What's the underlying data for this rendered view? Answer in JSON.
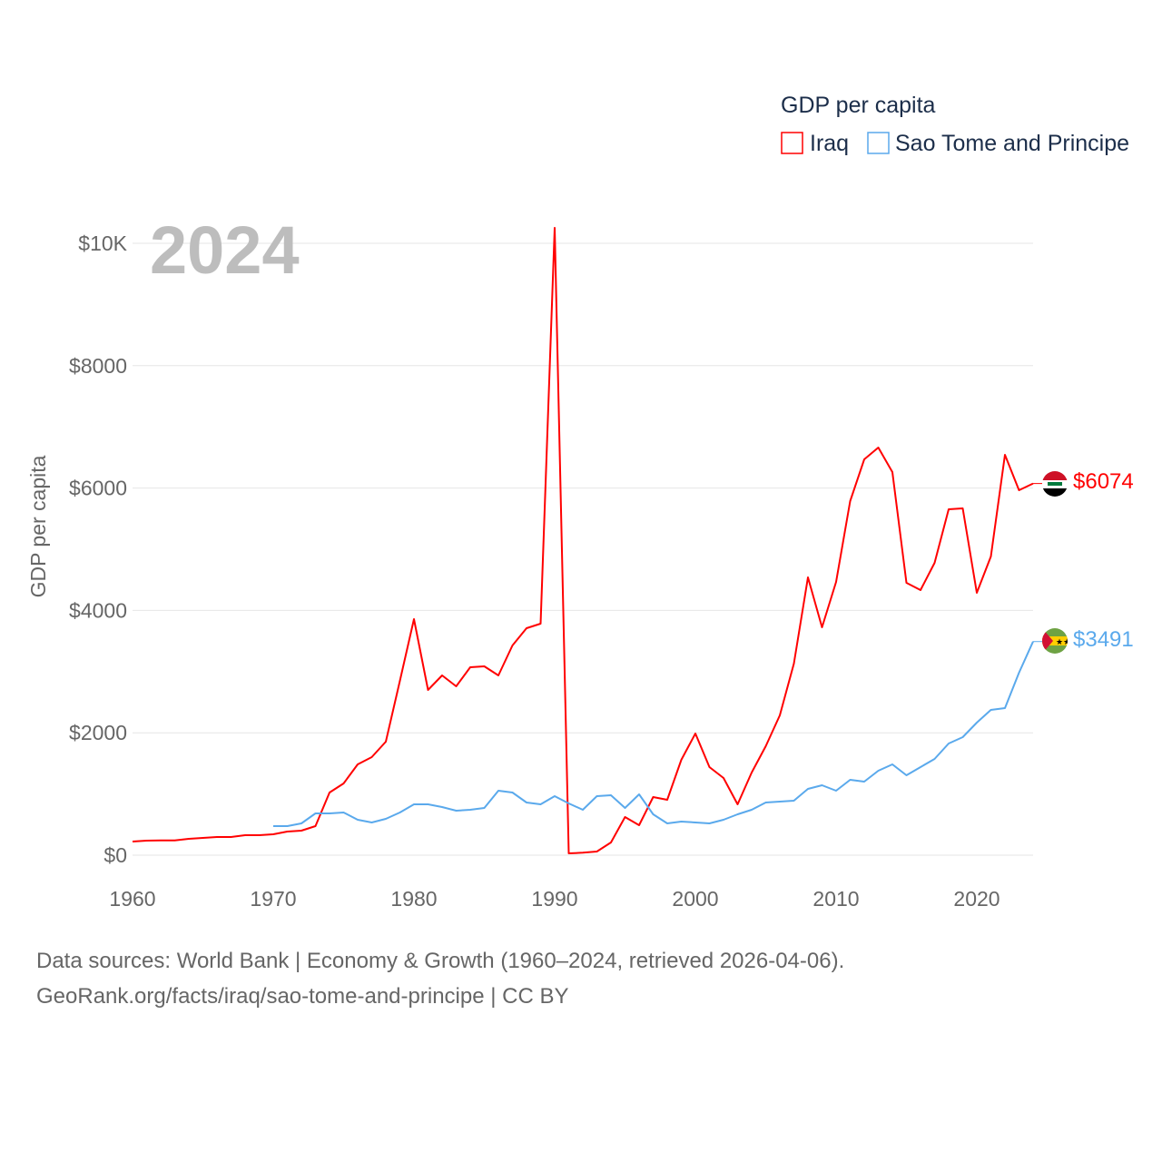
{
  "chart_data": {
    "type": "line",
    "title": "GDP per capita",
    "ylabel": "GDP per capita",
    "xlabel": "",
    "year_label": "2024",
    "xlim": [
      1960,
      2024
    ],
    "ylim": [
      0,
      10000
    ],
    "x_ticks": [
      1960,
      1970,
      1980,
      1990,
      2000,
      2010,
      2020
    ],
    "y_ticks": [
      {
        "v": 0,
        "label": "$0"
      },
      {
        "v": 2000,
        "label": "$2000"
      },
      {
        "v": 4000,
        "label": "$4000"
      },
      {
        "v": 6000,
        "label": "$6000"
      },
      {
        "v": 8000,
        "label": "$8000"
      },
      {
        "v": 10000,
        "label": "$10K"
      }
    ],
    "grid": true,
    "legend_position": "top-right",
    "series": [
      {
        "name": "Iraq",
        "color": "#ff0000",
        "end_label": "$6074",
        "start_year": 1960,
        "values": [
          223,
          237,
          240,
          240,
          267,
          282,
          297,
          297,
          326,
          326,
          341,
          386,
          400,
          475,
          1024,
          1172,
          1484,
          1602,
          1855,
          2849,
          3858,
          2700,
          2938,
          2760,
          3071,
          3086,
          2938,
          3427,
          3709,
          3783,
          10252,
          30,
          40,
          60,
          208,
          623,
          490,
          950,
          905,
          1558,
          1988,
          1439,
          1261,
          831,
          1350,
          1780,
          2285,
          3130,
          4540,
          3724,
          4466,
          5786,
          6469,
          6662,
          6261,
          4451,
          4332,
          4777,
          5653,
          5668,
          4288,
          4881,
          6543,
          5964,
          6074
        ]
      },
      {
        "name": "Sao Tome and Principe",
        "color": "#5aa9ec",
        "end_label": "$3491",
        "start_year": 1970,
        "values": [
          475,
          475,
          520,
          682,
          682,
          697,
          579,
          534,
          593,
          697,
          831,
          831,
          786,
          727,
          742,
          772,
          1053,
          1024,
          860,
          831,
          964,
          846,
          742,
          964,
          979,
          772,
          994,
          668,
          519,
          549,
          534,
          519,
          579,
          668,
          742,
          861,
          875,
          890,
          1083,
          1142,
          1053,
          1231,
          1202,
          1380,
          1484,
          1306,
          1439,
          1573,
          1825,
          1929,
          2166,
          2374,
          2404,
          2982,
          3491
        ]
      }
    ]
  },
  "footer": {
    "line1": "Data sources: World Bank | Economy & Growth (1960–2024, retrieved 2026-04-06).",
    "line2": "GeoRank.org/facts/iraq/sao-tome-and-principe | CC BY"
  }
}
